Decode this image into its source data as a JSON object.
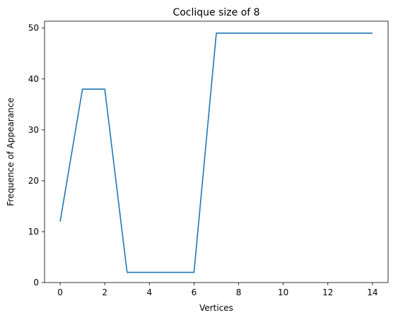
{
  "chart_data": {
    "type": "line",
    "title": "Coclique size of 8",
    "xlabel": "Vertices",
    "ylabel": "Frequence of Appearance",
    "xlim": [
      -0.7,
      14.7
    ],
    "ylim": [
      0,
      51.35
    ],
    "xticks": [
      0,
      2,
      4,
      6,
      8,
      10,
      12,
      14
    ],
    "yticks": [
      0,
      10,
      20,
      30,
      40,
      50
    ],
    "grid": false,
    "series": [
      {
        "color": "#1f77b4",
        "x": [
          0,
          1,
          2,
          3,
          4,
          5,
          6,
          7,
          8,
          9,
          10,
          11,
          12,
          13,
          14
        ],
        "y": [
          12,
          38,
          38,
          2,
          2,
          2,
          2,
          49,
          49,
          49,
          49,
          49,
          49,
          49,
          49
        ]
      }
    ]
  }
}
